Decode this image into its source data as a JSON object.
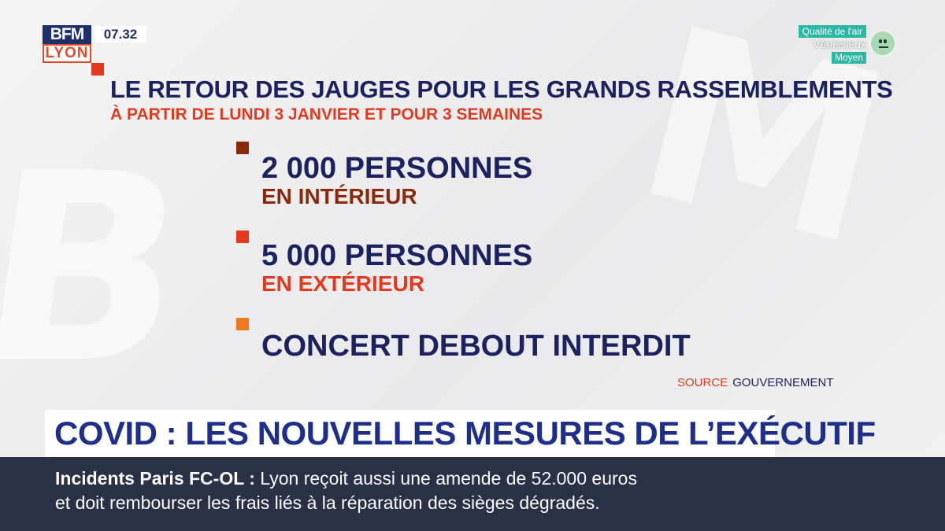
{
  "channel": {
    "logo_top": "BFM",
    "logo_bottom": "LYON",
    "time": "07.32"
  },
  "air_quality": {
    "label": "Qualité de l'air",
    "city": "Vénissieux",
    "level": "Moyen",
    "icon": "neutral-face-icon"
  },
  "graphic": {
    "title": "LE RETOUR DES JAUGES POUR LES GRANDS RASSEMBLEMENTS",
    "subtitle": "À PARTIR DE LUNDI 3 JANVIER ET POUR 3 SEMAINES",
    "items": [
      {
        "main": "2 000 PERSONNES",
        "sub": "EN INTÉRIEUR",
        "color": "#8a2a0a"
      },
      {
        "main": "5 000 PERSONNES",
        "sub": "EN EXTÉRIEUR",
        "color": "#e3391f"
      },
      {
        "main": "CONCERT DEBOUT INTERDIT",
        "sub": "",
        "color": "#f0781e"
      }
    ],
    "source_label": "SOURCE",
    "source_value": "GOUVERNEMENT"
  },
  "headline": "COVID : LES NOUVELLES MESURES DE L’EXÉCUTIF",
  "ticker": {
    "lead": "Incidents Paris FC-OL :",
    "line1": "Lyon reçoit aussi une amende de 52.000 euros",
    "line2": "et doit rembourser les frais liés à la réparation des sièges dégradés."
  },
  "colors": {
    "navy": "#1a2260",
    "red": "#e3391f",
    "ticker_bg": "#2a3046",
    "teal": "#2bb7a3"
  }
}
